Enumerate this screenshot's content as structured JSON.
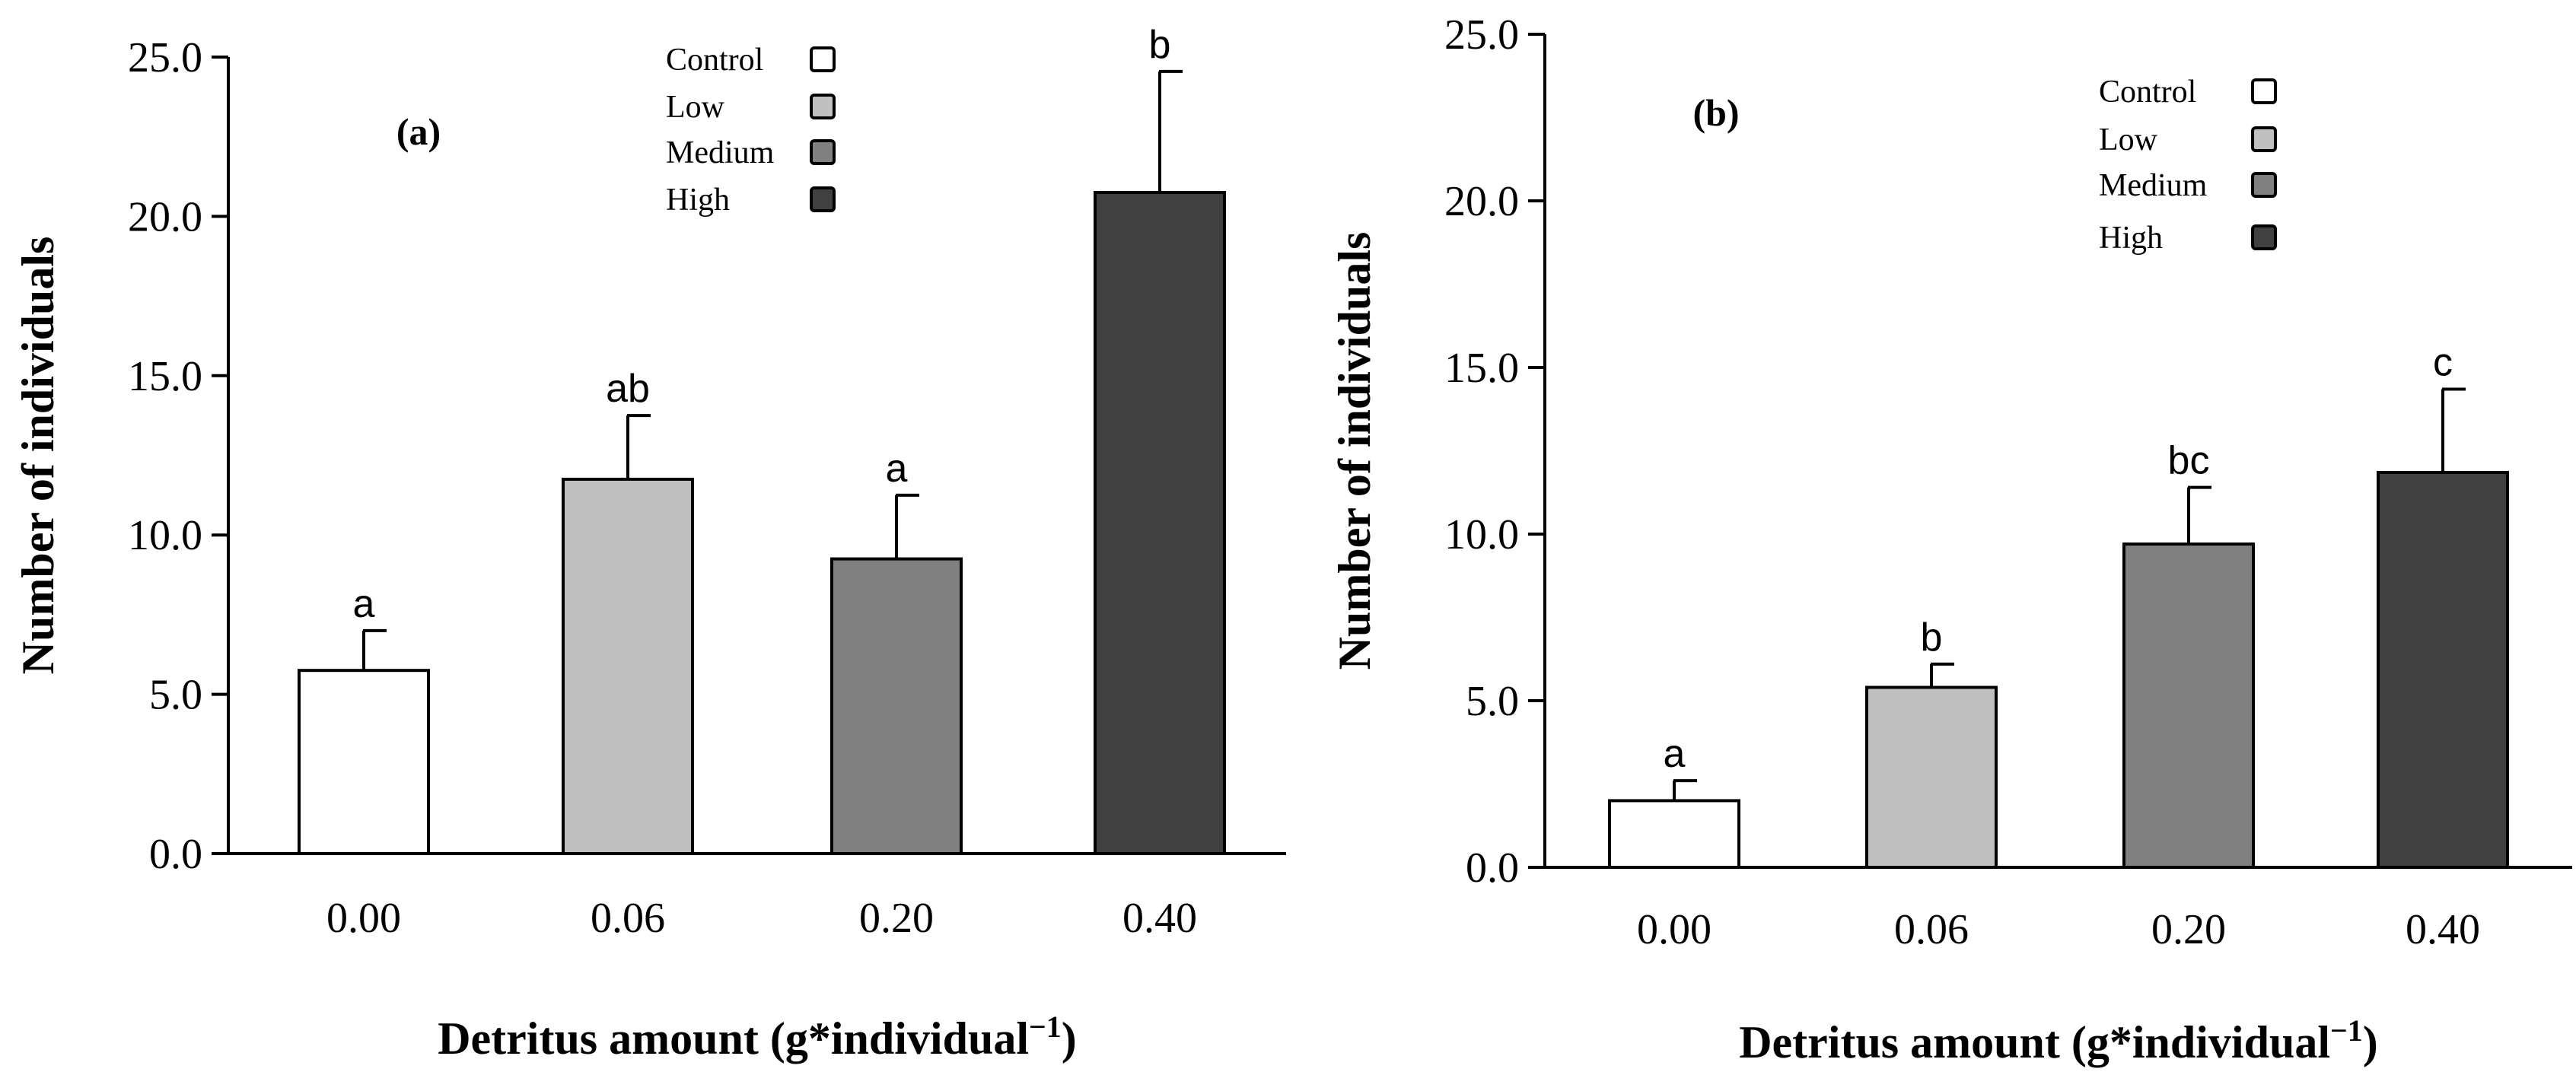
{
  "figure": {
    "title": ""
  },
  "chart_data": [
    {
      "type": "bar",
      "panel": "(a)",
      "categories": [
        "0.00",
        "0.06",
        "0.20",
        "0.40"
      ],
      "values": [
        5.75,
        11.75,
        9.25,
        20.75
      ],
      "errors": [
        1.25,
        2.0,
        2.0,
        3.8
      ],
      "significance": [
        "a",
        "ab",
        "a",
        "b"
      ],
      "xlabel": "Detritus amount (g*individual",
      "xlabel_sup": "−1",
      "xlabel_close": ")",
      "ylabel": "Number of individuals",
      "ylim": [
        0,
        25
      ],
      "yticks": [
        "0.0",
        "5.0",
        "10.0",
        "15.0",
        "20.0",
        "25.0"
      ],
      "legend": [
        "Control",
        "Low",
        "Medium",
        "High"
      ],
      "colors": [
        "#ffffff",
        "#c0c0c0",
        "#808080",
        "#404040"
      ],
      "legend_position": "top-center"
    },
    {
      "type": "bar",
      "panel": "(b)",
      "categories": [
        "0.00",
        "0.06",
        "0.20",
        "0.40"
      ],
      "values": [
        2.0,
        5.4,
        9.7,
        11.85
      ],
      "errors": [
        0.6,
        0.7,
        1.7,
        2.5
      ],
      "significance": [
        "a",
        "b",
        "bc",
        "c"
      ],
      "xlabel": "Detritus amount (g*individual",
      "xlabel_sup": "−1",
      "xlabel_close": ")",
      "ylabel": "Number of individuals",
      "ylim": [
        0,
        25
      ],
      "yticks": [
        "0.0",
        "5.0",
        "10.0",
        "15.0",
        "20.0",
        "25.0"
      ],
      "legend": [
        "Control",
        "Low",
        "Medium",
        "High"
      ],
      "colors": [
        "#ffffff",
        "#c0c0c0",
        "#808080",
        "#404040"
      ],
      "legend_position": "top-center"
    }
  ]
}
